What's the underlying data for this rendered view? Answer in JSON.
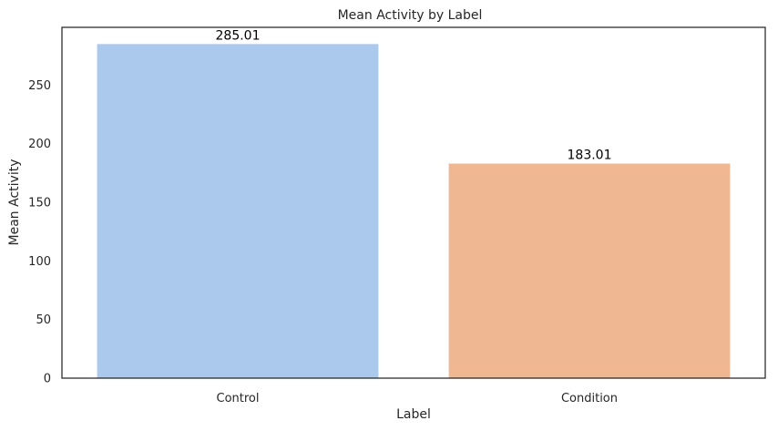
{
  "chart_data": {
    "type": "bar",
    "title": "Mean Activity by Label",
    "xlabel": "Label",
    "ylabel": "Mean Activity",
    "categories": [
      "Control",
      "Condition"
    ],
    "values": [
      285.01,
      183.01
    ],
    "value_labels": [
      "285.01",
      "183.01"
    ],
    "colors": [
      "#abc9ed",
      "#f0b793"
    ],
    "ylim": [
      0,
      299.26
    ],
    "yticks": [
      0,
      50,
      100,
      150,
      200,
      250
    ],
    "grid": false,
    "legend": "none"
  }
}
